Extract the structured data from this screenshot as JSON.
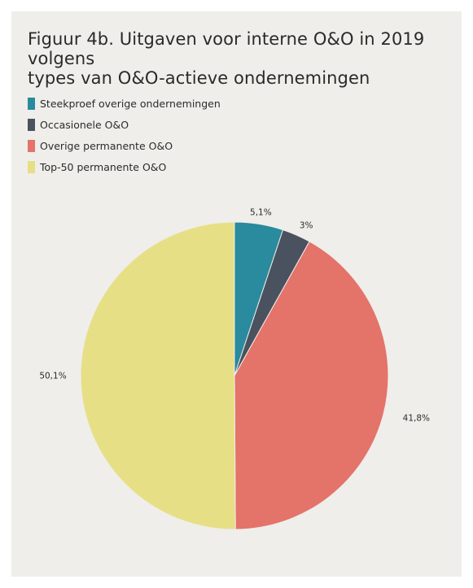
{
  "chart_data": {
    "type": "pie",
    "title": "Figuur 4b. Uitgaven voor interne O&O in 2019 volgens types van O&O-actieve ondernemingen",
    "title_lines": [
      "Figuur 4b. Uitgaven voor interne O&O in 2019 volgens",
      "types van O&O-actieve ondernemingen"
    ],
    "legend_placement": "top-left",
    "slices": [
      {
        "name": "Steekproef overige ondernemingen",
        "value": 5.1,
        "label": "5,1%",
        "color": "#2a8a9e"
      },
      {
        "name": "Occasionele O&O",
        "value": 3.0,
        "label": "3%",
        "color": "#4a5260"
      },
      {
        "name": "Overige permanente O&O",
        "value": 41.8,
        "label": "41,8%",
        "color": "#e4736a"
      },
      {
        "name": "Top-50 permanente O&O",
        "value": 50.1,
        "label": "50,1%",
        "color": "#e7df86"
      }
    ]
  }
}
